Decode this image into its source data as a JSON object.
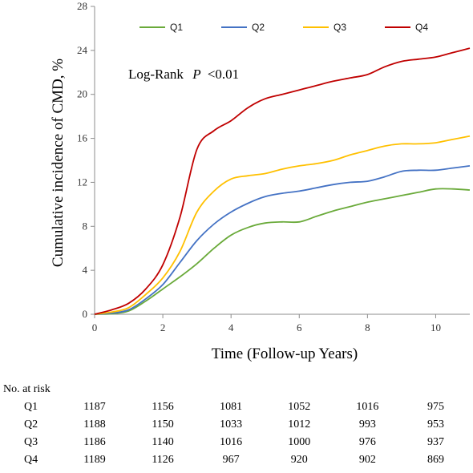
{
  "chart_data": {
    "type": "line",
    "title": "",
    "xlabel": "Time (Follow-up Years)",
    "ylabel": "Cumulative incidence of CMD, %",
    "xlim": [
      0,
      11
    ],
    "ylim": [
      0,
      28
    ],
    "x_ticks": [
      "0",
      "2",
      "4",
      "6",
      "8",
      "10"
    ],
    "y_ticks": [
      "0",
      "4",
      "8",
      "12",
      "16",
      "20",
      "24",
      "28"
    ],
    "grid": false,
    "legend_position": "top",
    "annotation": {
      "prefix": "Log-Rank",
      "p": "P",
      "value": "<0.01"
    },
    "series": [
      {
        "name": "Q1",
        "color": "#6aaa3a",
        "points": [
          [
            0,
            0
          ],
          [
            0.5,
            0.05
          ],
          [
            1,
            0.3
          ],
          [
            1.5,
            1.2
          ],
          [
            2,
            2.3
          ],
          [
            2.5,
            3.4
          ],
          [
            3,
            4.6
          ],
          [
            3.5,
            6
          ],
          [
            4,
            7.2
          ],
          [
            4.5,
            7.9
          ],
          [
            5,
            8.3
          ],
          [
            5.5,
            8.4
          ],
          [
            6,
            8.4
          ],
          [
            6.5,
            8.9
          ],
          [
            7,
            9.4
          ],
          [
            7.5,
            9.8
          ],
          [
            8,
            10.2
          ],
          [
            8.5,
            10.5
          ],
          [
            9,
            10.8
          ],
          [
            9.5,
            11.1
          ],
          [
            10,
            11.4
          ],
          [
            10.5,
            11.4
          ],
          [
            11,
            11.3
          ]
        ]
      },
      {
        "name": "Q2",
        "color": "#4472c4",
        "points": [
          [
            0,
            0
          ],
          [
            0.5,
            0.1
          ],
          [
            1,
            0.4
          ],
          [
            1.5,
            1.4
          ],
          [
            2,
            2.7
          ],
          [
            2.5,
            4.7
          ],
          [
            3,
            6.7
          ],
          [
            3.5,
            8.2
          ],
          [
            4,
            9.3
          ],
          [
            4.5,
            10.1
          ],
          [
            5,
            10.7
          ],
          [
            5.5,
            11
          ],
          [
            6,
            11.2
          ],
          [
            6.5,
            11.5
          ],
          [
            7,
            11.8
          ],
          [
            7.5,
            12
          ],
          [
            8,
            12.1
          ],
          [
            8.5,
            12.5
          ],
          [
            9,
            13
          ],
          [
            9.5,
            13.1
          ],
          [
            10,
            13.1
          ],
          [
            10.5,
            13.3
          ],
          [
            11,
            13.5
          ]
        ]
      },
      {
        "name": "Q3",
        "color": "#ffc000",
        "points": [
          [
            0,
            0
          ],
          [
            0.5,
            0.2
          ],
          [
            1,
            0.6
          ],
          [
            1.5,
            1.8
          ],
          [
            2,
            3.3
          ],
          [
            2.5,
            5.7
          ],
          [
            3,
            9.3
          ],
          [
            3.5,
            11.2
          ],
          [
            4,
            12.3
          ],
          [
            4.5,
            12.6
          ],
          [
            5,
            12.8
          ],
          [
            5.5,
            13.2
          ],
          [
            6,
            13.5
          ],
          [
            6.5,
            13.7
          ],
          [
            7,
            14
          ],
          [
            7.5,
            14.5
          ],
          [
            8,
            14.9
          ],
          [
            8.5,
            15.3
          ],
          [
            9,
            15.5
          ],
          [
            9.5,
            15.5
          ],
          [
            10,
            15.6
          ],
          [
            10.5,
            15.9
          ],
          [
            11,
            16.2
          ]
        ]
      },
      {
        "name": "Q4",
        "color": "#c00000",
        "points": [
          [
            0,
            0
          ],
          [
            0.5,
            0.4
          ],
          [
            1,
            1
          ],
          [
            1.5,
            2.3
          ],
          [
            2,
            4.5
          ],
          [
            2.5,
            8.8
          ],
          [
            3,
            15
          ],
          [
            3.5,
            16.7
          ],
          [
            4,
            17.6
          ],
          [
            4.5,
            18.8
          ],
          [
            5,
            19.6
          ],
          [
            5.5,
            20
          ],
          [
            6,
            20.4
          ],
          [
            6.5,
            20.8
          ],
          [
            7,
            21.2
          ],
          [
            7.5,
            21.5
          ],
          [
            8,
            21.8
          ],
          [
            8.5,
            22.5
          ],
          [
            9,
            23
          ],
          [
            9.5,
            23.2
          ],
          [
            10,
            23.4
          ],
          [
            10.5,
            23.8
          ],
          [
            11,
            24.2
          ]
        ]
      }
    ]
  },
  "risk_table": {
    "title": "No. at risk",
    "rows": [
      {
        "label": "Q1",
        "values": [
          "1187",
          "1156",
          "1081",
          "1052",
          "1016",
          "975"
        ]
      },
      {
        "label": "Q2",
        "values": [
          "1188",
          "1150",
          "1033",
          "1012",
          "993",
          "953"
        ]
      },
      {
        "label": "Q3",
        "values": [
          "1186",
          "1140",
          "1016",
          "1000",
          "976",
          "937"
        ]
      },
      {
        "label": "Q4",
        "values": [
          "1189",
          "1126",
          "967",
          "920",
          "902",
          "869"
        ]
      }
    ]
  }
}
